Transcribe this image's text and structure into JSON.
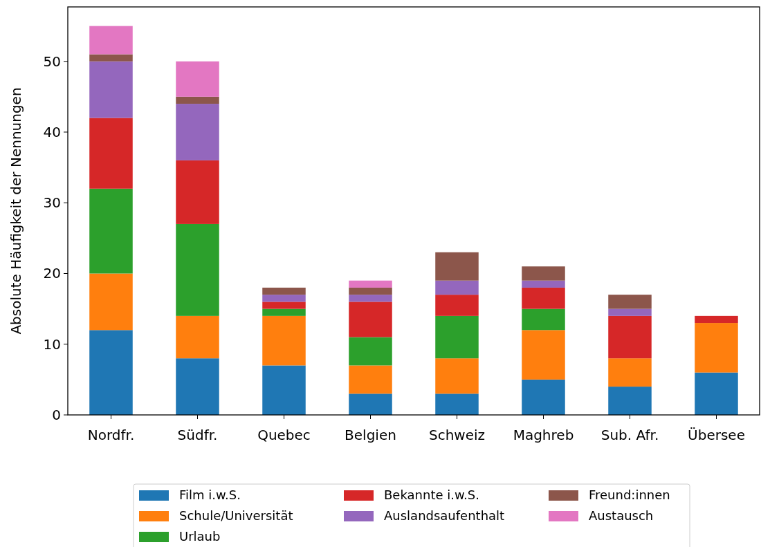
{
  "chart_data": {
    "type": "bar",
    "stacked": true,
    "ylabel": "Absolute Häufigkeit der Nennungen",
    "categories": [
      "Nordfr.",
      "Südfr.",
      "Quebec",
      "Belgien",
      "Schweiz",
      "Maghreb",
      "Sub. Afr.",
      "Übersee"
    ],
    "ylim": [
      0,
      57.7
    ],
    "yticks": [
      0,
      10,
      20,
      30,
      40,
      50
    ],
    "legend": "bottom",
    "grid": false,
    "series": [
      {
        "name": "Film i.w.S.",
        "color": "#1f77b4",
        "values": [
          12,
          8,
          7,
          3,
          3,
          5,
          4,
          6
        ]
      },
      {
        "name": "Schule/Universität",
        "color": "#ff7f0e",
        "values": [
          8,
          6,
          7,
          4,
          5,
          7,
          4,
          7
        ]
      },
      {
        "name": "Urlaub",
        "color": "#2ca02c",
        "values": [
          12,
          13,
          1,
          4,
          6,
          3,
          0,
          0
        ]
      },
      {
        "name": "Bekannte i.w.S.",
        "color": "#d62728",
        "values": [
          10,
          9,
          1,
          5,
          3,
          3,
          6,
          1
        ]
      },
      {
        "name": "Auslandsaufenthalt",
        "color": "#9467bd",
        "values": [
          8,
          8,
          1,
          1,
          2,
          1,
          1,
          0
        ]
      },
      {
        "name": "Freund:innen",
        "color": "#8c564b",
        "values": [
          1,
          1,
          1,
          1,
          4,
          2,
          2,
          0
        ]
      },
      {
        "name": "Austausch",
        "color": "#e377c2",
        "values": [
          4,
          5,
          0,
          1,
          0,
          0,
          0,
          0
        ]
      }
    ]
  }
}
